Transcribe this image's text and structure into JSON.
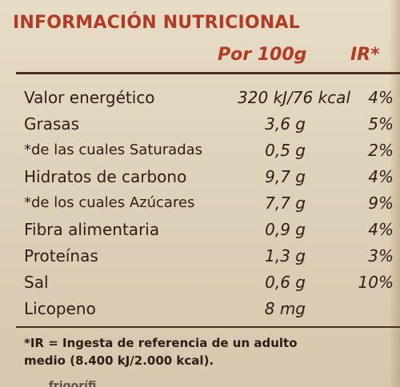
{
  "panel": {
    "heading": "INFORMACIÓN NUTRICIONAL",
    "per_label": "Por 100g",
    "ir_label": "IR*"
  },
  "rows": [
    {
      "label": "Valor energético",
      "value": "320 kJ/76 kcal",
      "ir": "4%"
    },
    {
      "label": "Grasas",
      "value": "3,6 g",
      "ir": "5%"
    },
    {
      "label": "*de las cuales Saturadas",
      "value": "0,5 g",
      "ir": "2%"
    },
    {
      "label": "Hidratos de carbono",
      "value": "9,7 g",
      "ir": "4%"
    },
    {
      "label": "*de los cuales Azúcares",
      "value": "7,7 g",
      "ir": "9%"
    },
    {
      "label": "Fibra alimentaria",
      "value": "0,9 g",
      "ir": "4%"
    },
    {
      "label": "Proteínas",
      "value": "1,3 g",
      "ir": "3%"
    },
    {
      "label": "Sal",
      "value": "0,6 g",
      "ir": "10%"
    },
    {
      "label": "Licopeno",
      "value": "8 mg",
      "ir": ""
    }
  ],
  "footnote": {
    "line1": "*IR = Ingesta de referencia de un adulto",
    "line2": "medio (8.400 kJ/2.000 kcal).",
    "cut_line": "... frigorífi"
  },
  "colors": {
    "accent": "#b33a24",
    "text": "#2e1d16",
    "rule": "#4a2e22",
    "background": "#e3d7c0"
  }
}
